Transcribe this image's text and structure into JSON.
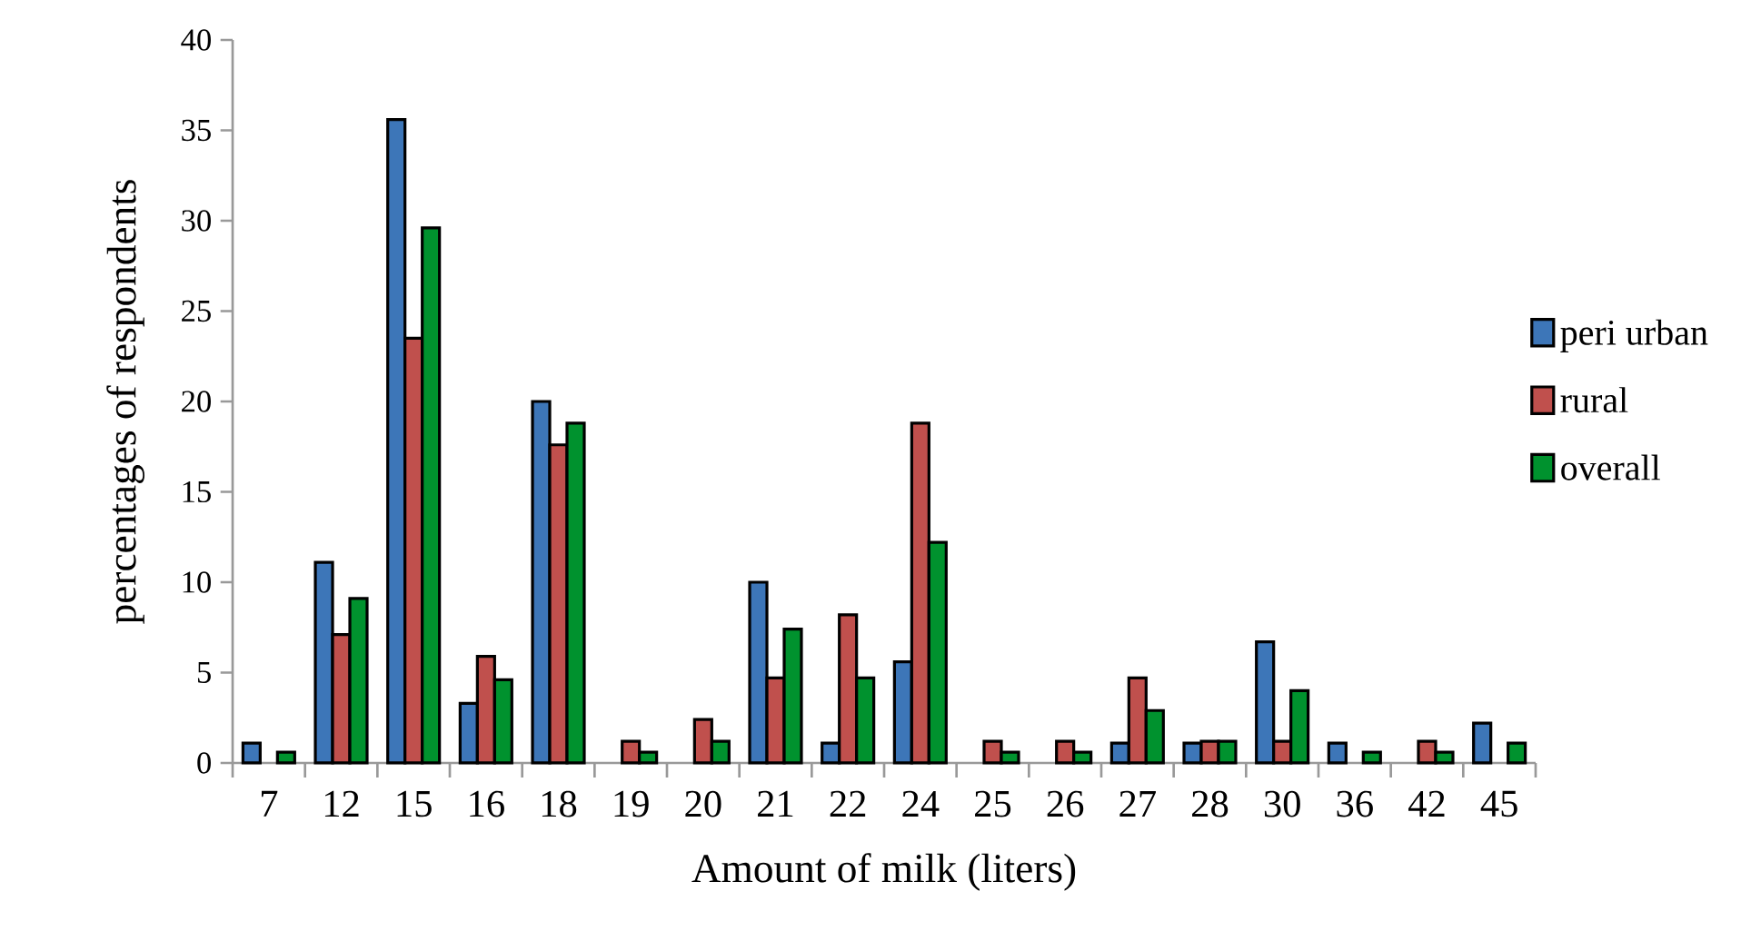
{
  "chart_data": {
    "type": "bar",
    "xlabel": "Amount of milk (liters)",
    "ylabel": "percentages of respondents",
    "categories": [
      "7",
      "12",
      "15",
      "16",
      "18",
      "19",
      "20",
      "21",
      "22",
      "24",
      "25",
      "26",
      "27",
      "28",
      "30",
      "36",
      "42",
      "45"
    ],
    "series": [
      {
        "name": "peri urban",
        "color": "#3d76b8",
        "values": [
          1.1,
          11.1,
          35.6,
          3.3,
          20,
          null,
          null,
          10,
          1.1,
          5.6,
          null,
          null,
          1.1,
          1.1,
          6.7,
          1.1,
          null,
          2.2
        ]
      },
      {
        "name": "rural",
        "color": "#c0504d",
        "values": [
          null,
          7.1,
          23.5,
          5.9,
          17.6,
          1.2,
          2.4,
          4.7,
          8.2,
          18.8,
          1.2,
          1.2,
          4.7,
          1.2,
          1.2,
          null,
          1.2,
          null
        ]
      },
      {
        "name": "overall",
        "color": "#00922e",
        "values": [
          0.6,
          9.1,
          29.6,
          4.6,
          18.8,
          0.6,
          1.2,
          7.4,
          4.7,
          12.2,
          0.6,
          0.6,
          2.9,
          1.2,
          4.0,
          0.6,
          0.6,
          1.1
        ]
      }
    ],
    "ylim": [
      0,
      40
    ],
    "yticks": [
      0,
      5,
      10,
      15,
      20,
      25,
      30,
      35,
      40
    ],
    "grid": false,
    "legend": "right"
  }
}
